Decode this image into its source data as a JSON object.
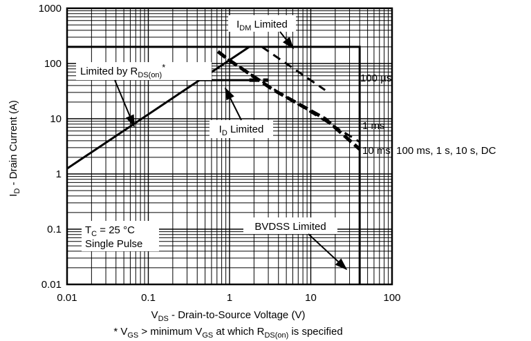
{
  "chart_data": {
    "type": "line",
    "title": "",
    "xscale": "log",
    "yscale": "log",
    "xlim": [
      0.01,
      100
    ],
    "ylim": [
      0.01,
      1000
    ],
    "grid": true,
    "x_ticks": [
      "0.01",
      "0.1",
      "1",
      "10",
      "100"
    ],
    "y_ticks": [
      "0.01",
      "0.1",
      "1",
      "10",
      "100",
      "1000"
    ],
    "xlabel": {
      "a": "V",
      "sub": "DS",
      "b": " - Drain-to-Source Voltage (V)"
    },
    "ylabel": {
      "a": "I",
      "sub": "D",
      "b": " - Drain Current (A)"
    },
    "footnote": {
      "a": "* V",
      "s1": "GS",
      "b": " > minimum V",
      "s2": "GS",
      "c": " at which R",
      "s3": "DS(on)",
      "d": " is specified"
    },
    "series": [
      {
        "key": "rds",
        "style": "solid",
        "points": [
          [
            0.01,
            1.25
          ],
          [
            1.75,
            200
          ]
        ]
      },
      {
        "key": "idm",
        "style": "solid",
        "points": [
          [
            0.01,
            200
          ],
          [
            40,
            200
          ],
          [
            40,
            0.01
          ]
        ]
      },
      {
        "key": "idlim",
        "style": "solid",
        "points": [
          [
            0.43,
            50
          ],
          [
            1.75,
            50
          ]
        ]
      },
      {
        "key": "us100",
        "style": "dashed",
        "points": [
          [
            2.5,
            200
          ],
          [
            15,
            33
          ]
        ]
      },
      {
        "key": "ms1",
        "style": "dashed",
        "points": [
          [
            0.95,
            120
          ],
          [
            4.5,
            27
          ],
          [
            40,
            3.8
          ]
        ]
      },
      {
        "key": "dc",
        "style": "dashed-bold",
        "points": [
          [
            0.72,
            165
          ],
          [
            0.95,
            120
          ],
          [
            3.5,
            33
          ],
          [
            15,
            10
          ],
          [
            40,
            2.8
          ]
        ]
      },
      {
        "key": "idext",
        "style": "dashed-bold",
        "points": [
          [
            1.75,
            50
          ],
          [
            3,
            50
          ]
        ]
      }
    ],
    "annotations": {
      "idm": {
        "a": "I",
        "sub": "DM",
        "b": " Limited"
      },
      "rds": {
        "a": "Limited by R",
        "sub": "DS(on)",
        "b": "*"
      },
      "id": {
        "a": "I",
        "sub": "D",
        "b": " Limited"
      },
      "bvdss": "BVDSS Limited",
      "us100": "100 µs",
      "ms1": "1 ms",
      "dc": "10 ms, 100 ms, 1 s, 10 s, DC",
      "tc": {
        "a": "T",
        "sub": "C",
        "b": " = 25 °C"
      },
      "pulse": "Single Pulse"
    }
  }
}
